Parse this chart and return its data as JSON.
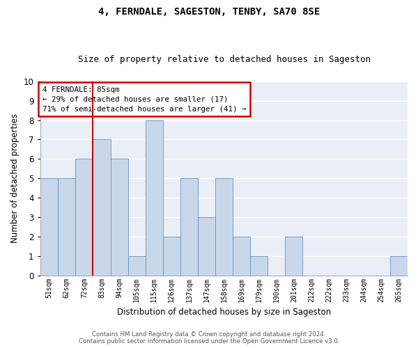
{
  "title": "4, FERNDALE, SAGESTON, TENBY, SA70 8SE",
  "subtitle": "Size of property relative to detached houses in Sageston",
  "xlabel": "Distribution of detached houses by size in Sageston",
  "ylabel": "Number of detached properties",
  "categories": [
    "51sqm",
    "62sqm",
    "72sqm",
    "83sqm",
    "94sqm",
    "105sqm",
    "115sqm",
    "126sqm",
    "137sqm",
    "147sqm",
    "158sqm",
    "169sqm",
    "179sqm",
    "190sqm",
    "201sqm",
    "212sqm",
    "222sqm",
    "233sqm",
    "244sqm",
    "254sqm",
    "265sqm"
  ],
  "values": [
    5,
    5,
    6,
    7,
    6,
    1,
    8,
    2,
    5,
    3,
    5,
    2,
    1,
    0,
    2,
    0,
    0,
    0,
    0,
    0,
    1
  ],
  "bar_color": "#c8d8ea",
  "bar_edge_color": "#6690bb",
  "background_color": "#eaeff7",
  "vline_index": 2.5,
  "annotation_text_line1": "4 FERNDALE: 85sqm",
  "annotation_text_line2": "← 29% of detached houses are smaller (17)",
  "annotation_text_line3": "71% of semi-detached houses are larger (41) →",
  "annotation_box_color": "#ffffff",
  "annotation_box_edge_color": "#cc0000",
  "vline_color": "#cc0000",
  "ylim": [
    0,
    10
  ],
  "yticks": [
    0,
    1,
    2,
    3,
    4,
    5,
    6,
    7,
    8,
    9,
    10
  ],
  "footer_line1": "Contains HM Land Registry data © Crown copyright and database right 2024.",
  "footer_line2": "Contains public sector information licensed under the Open Government Licence v3.0."
}
